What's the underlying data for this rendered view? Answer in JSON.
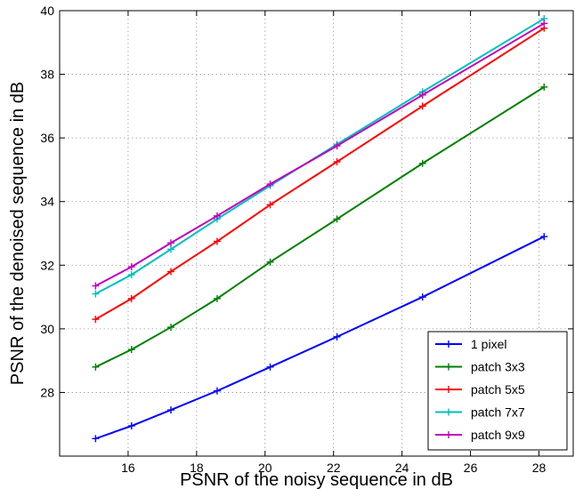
{
  "chart_data": {
    "type": "line",
    "title": "",
    "xlabel": "PSNR of the noisy sequence in dB",
    "ylabel": "PSNR of the denoised sequence in dB",
    "xlim": [
      14,
      29
    ],
    "ylim": [
      26,
      40
    ],
    "xticks": [
      16,
      18,
      20,
      22,
      24,
      26,
      28
    ],
    "yticks": [
      28,
      30,
      32,
      34,
      36,
      38,
      40
    ],
    "grid": true,
    "legend_position": "bottom-right",
    "x": [
      15.05,
      16.1,
      17.25,
      18.6,
      20.15,
      22.1,
      24.6,
      28.15
    ],
    "series": [
      {
        "name": "1 pixel",
        "color": "#0000ff",
        "values": [
          26.55,
          26.95,
          27.45,
          28.05,
          28.8,
          29.75,
          31.0,
          32.9
        ]
      },
      {
        "name": "patch 3x3",
        "color": "#008000",
        "values": [
          28.8,
          29.35,
          30.05,
          30.95,
          32.1,
          33.45,
          35.2,
          37.6
        ]
      },
      {
        "name": "patch 5x5",
        "color": "#ff0000",
        "values": [
          30.3,
          30.95,
          31.8,
          32.75,
          33.9,
          35.25,
          37.0,
          39.45
        ]
      },
      {
        "name": "patch 7x7",
        "color": "#00bfbf",
        "values": [
          31.1,
          31.7,
          32.5,
          33.45,
          34.5,
          35.8,
          37.45,
          39.75
        ]
      },
      {
        "name": "patch 9x9",
        "color": "#bf00bf",
        "values": [
          31.35,
          31.95,
          32.7,
          33.55,
          34.55,
          35.75,
          37.35,
          39.6
        ]
      }
    ]
  }
}
